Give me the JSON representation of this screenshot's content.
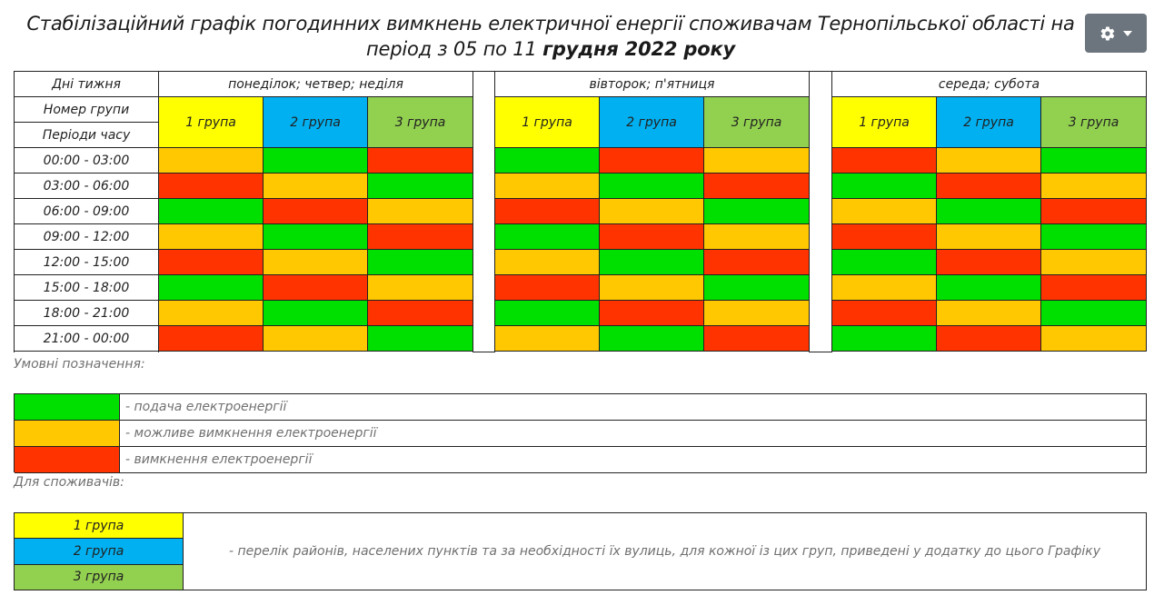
{
  "title": {
    "line1": "Стабілізаційний графік погодинних вимкнень електричної енергії споживачам Тернопільської області на",
    "line2_normal": "період з 05 по 11 ",
    "line2_bold": "грудня 2022 року"
  },
  "header": {
    "days_label": "Дні тижня",
    "group_label": "Номер групи",
    "periods_label": "Періоди часу",
    "day_groups": [
      "понеділок; четвер; неділя",
      "вівторок; п'ятниця",
      "середа; субота"
    ],
    "group_names": [
      "1 група",
      "2 група",
      "3 група"
    ]
  },
  "periods": [
    "00:00 - 03:00",
    "03:00 - 06:00",
    "06:00 - 09:00",
    "09:00 - 12:00",
    "12:00 - 15:00",
    "15:00 - 18:00",
    "18:00 - 21:00",
    "21:00 - 00:00"
  ],
  "schedule": [
    [
      [
        "orange",
        "green",
        "red"
      ],
      [
        "green",
        "red",
        "orange"
      ],
      [
        "red",
        "orange",
        "green"
      ]
    ],
    [
      [
        "red",
        "orange",
        "green"
      ],
      [
        "orange",
        "green",
        "red"
      ],
      [
        "green",
        "red",
        "orange"
      ]
    ],
    [
      [
        "green",
        "red",
        "orange"
      ],
      [
        "red",
        "orange",
        "green"
      ],
      [
        "orange",
        "green",
        "red"
      ]
    ],
    [
      [
        "orange",
        "green",
        "red"
      ],
      [
        "green",
        "red",
        "orange"
      ],
      [
        "red",
        "orange",
        "green"
      ]
    ],
    [
      [
        "red",
        "orange",
        "green"
      ],
      [
        "orange",
        "green",
        "red"
      ],
      [
        "green",
        "red",
        "orange"
      ]
    ],
    [
      [
        "green",
        "red",
        "orange"
      ],
      [
        "red",
        "orange",
        "green"
      ],
      [
        "orange",
        "green",
        "red"
      ]
    ],
    [
      [
        "orange",
        "green",
        "red"
      ],
      [
        "green",
        "red",
        "orange"
      ],
      [
        "red",
        "orange",
        "green"
      ]
    ],
    [
      [
        "red",
        "orange",
        "green"
      ],
      [
        "orange",
        "green",
        "red"
      ],
      [
        "green",
        "red",
        "orange"
      ]
    ]
  ],
  "colors": {
    "green": "#00e000",
    "orange": "#ffc800",
    "red": "#ff3300",
    "group1": "#ffff00",
    "group2": "#00b0f0",
    "group3": "#92d050"
  },
  "legend_title": "Умовні позначення:",
  "legend": [
    {
      "color": "green",
      "text": "- подача електроенергії"
    },
    {
      "color": "orange",
      "text": "- можливе вимкнення електроенергії"
    },
    {
      "color": "red",
      "text": "- вимкнення електроенергії"
    }
  ],
  "consumers_title": "Для споживачів:",
  "consumers": {
    "groups": [
      "1 група",
      "2 група",
      "3 група"
    ],
    "text": "- перелік районів, населених пунктів та за необхідності їх вулиць, для кожної із цих груп, приведені у додатку до цього Графіку"
  },
  "icons": {
    "settings": "gear-icon",
    "dropdown": "caret-down-icon"
  }
}
